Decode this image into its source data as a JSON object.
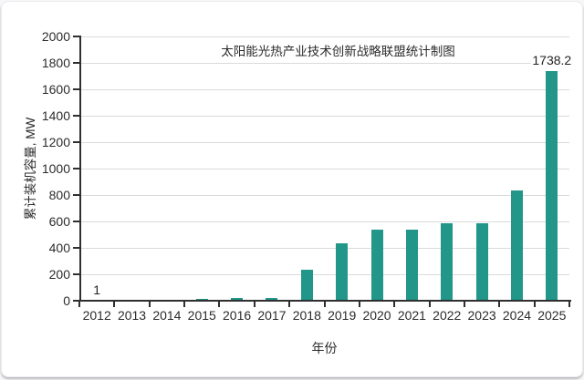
{
  "chart_data": {
    "type": "bar",
    "title": "太阳能光热产业技术创新战略联盟统计制图",
    "xlabel": "年份",
    "ylabel": "累计装机容量, MW",
    "categories": [
      "2012",
      "2013",
      "2014",
      "2015",
      "2016",
      "2017",
      "2018",
      "2019",
      "2020",
      "2021",
      "2022",
      "2023",
      "2024",
      "2025"
    ],
    "values": [
      1,
      8,
      10,
      12,
      22,
      24,
      238,
      438,
      538,
      538,
      583,
      583,
      838,
      1738.2
    ],
    "ylim": [
      0,
      2000
    ],
    "ytick_step": 200,
    "grid": true,
    "legend": "none",
    "bar_color": "#219689",
    "grid_color": "#dadada",
    "axis_color": "#2f2f2f",
    "annotations": [
      {
        "text": "1",
        "target": "2012"
      },
      {
        "text": "1738.2",
        "target": "2025"
      }
    ]
  }
}
